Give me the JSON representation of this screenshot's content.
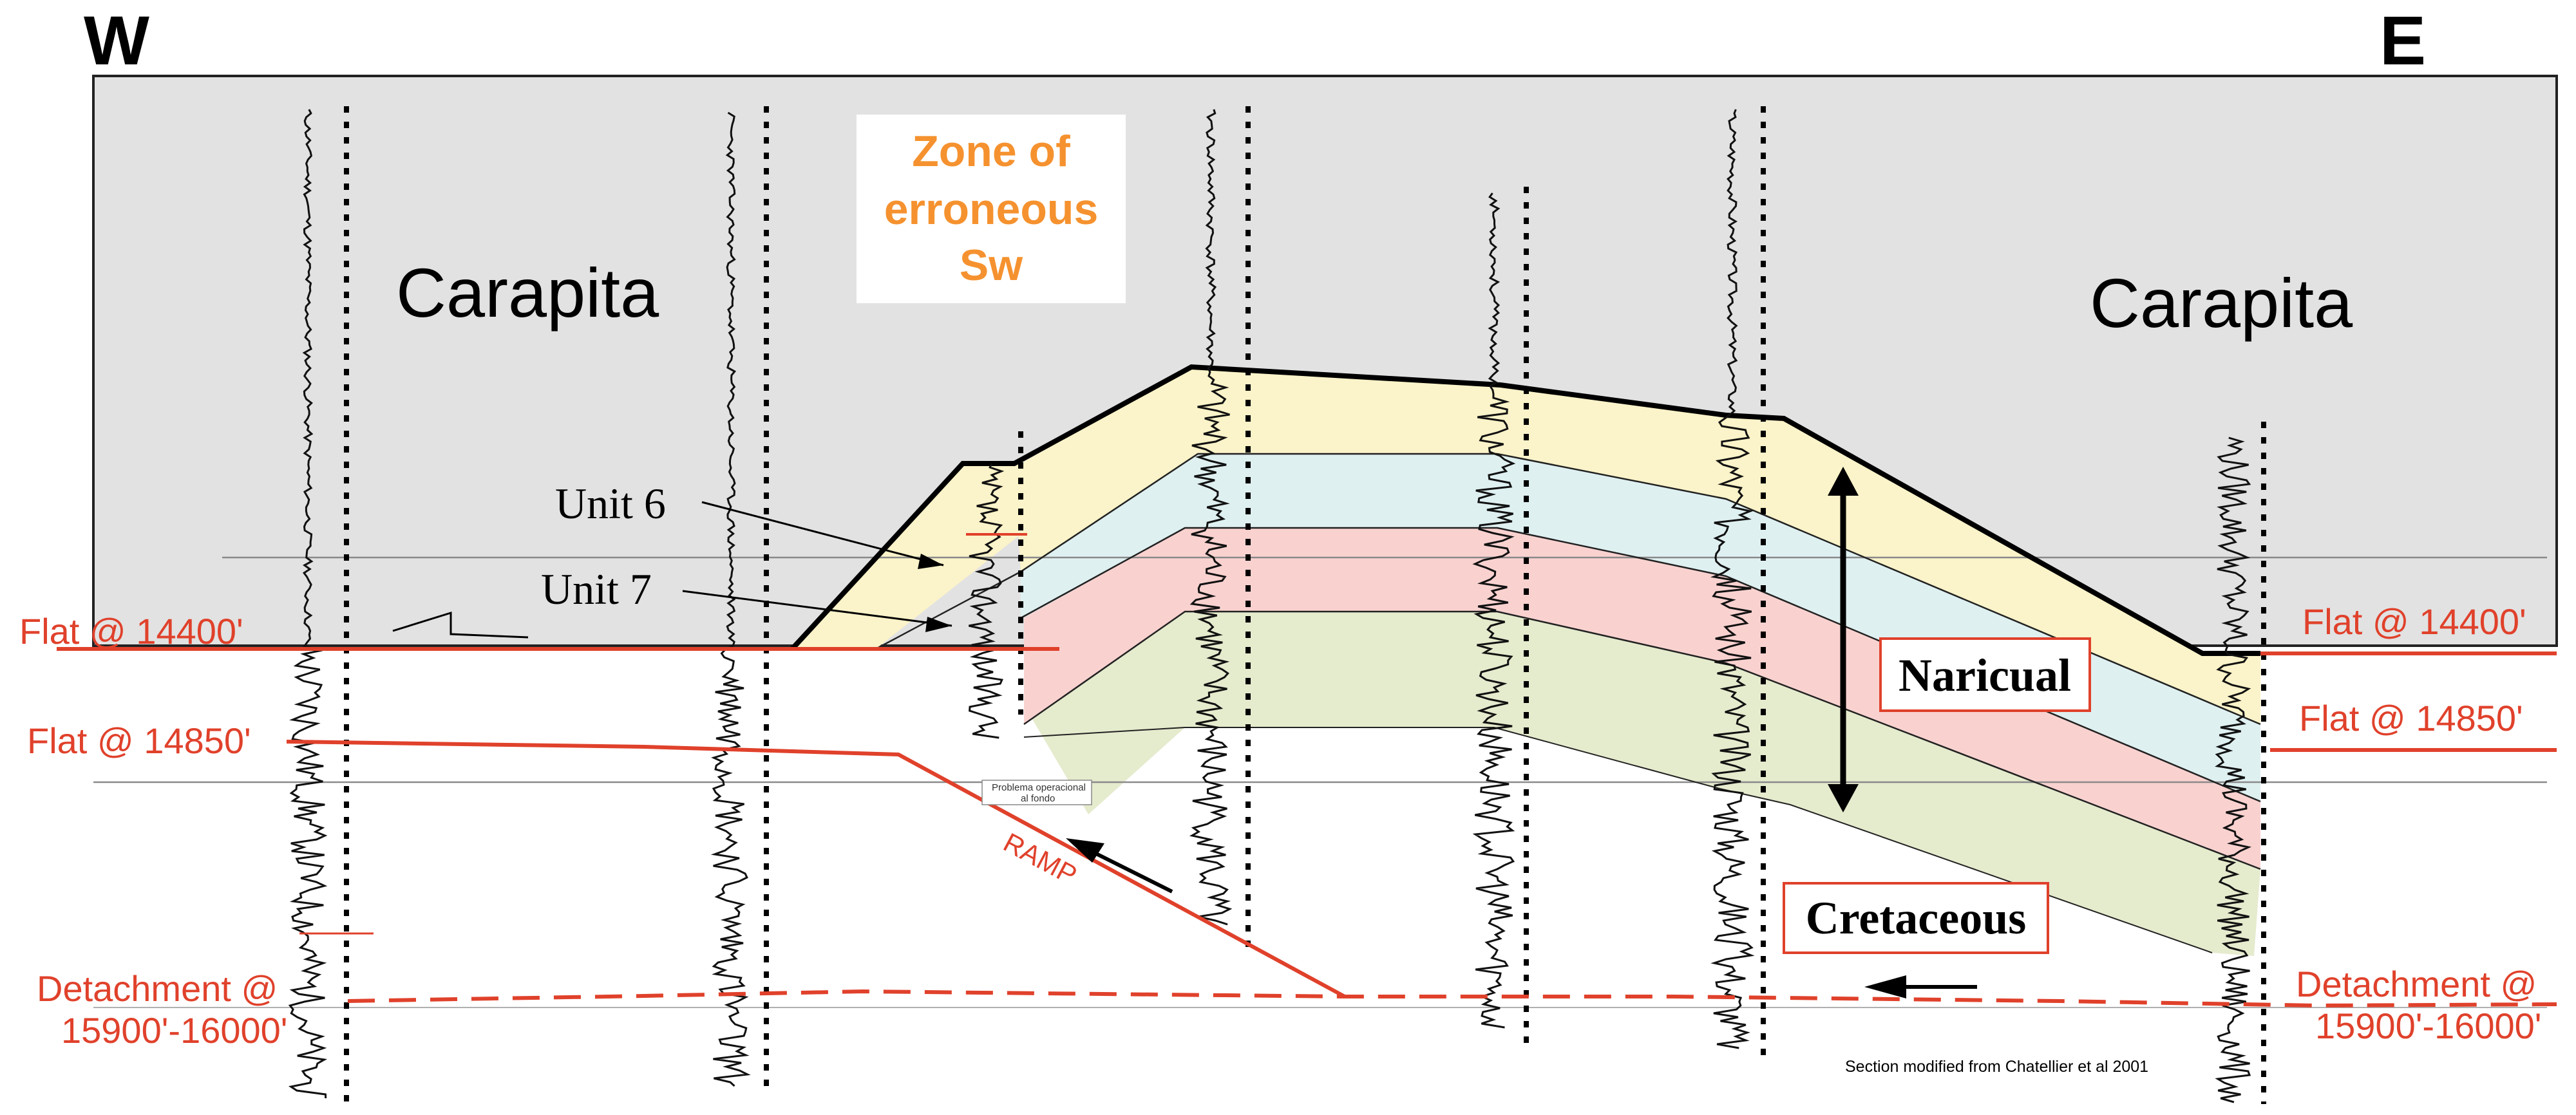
{
  "compass": {
    "west": "W",
    "east": "E"
  },
  "formations": {
    "carapita_left": "Carapita",
    "carapita_right": "Carapita"
  },
  "zone_box": {
    "line1": "Zone of",
    "line2": "erroneous",
    "line3": "Sw"
  },
  "units": {
    "unit6": "Unit 6",
    "unit7": "Unit 7"
  },
  "boxed_labels": {
    "naricual": "Naricual",
    "cretaceous": "Cretaceous"
  },
  "structural_labels": {
    "flat_14400_left": "Flat @ 14400'",
    "flat_14850_left": "Flat @ 14850'",
    "detachment_left_line1": "Detachment @",
    "detachment_left_line2": "15900'-16000'",
    "flat_14400_right": "Flat @ 14400'",
    "flat_14850_right": "Flat @ 14850'",
    "detachment_right_line1": "Detachment @",
    "detachment_right_line2": "15900'-16000'",
    "ramp": "RAMP"
  },
  "well_annotation": {
    "line1": "Problema operacional",
    "line2": "al fondo"
  },
  "credit": "Section modified from Chatellier et al 2001",
  "colors": {
    "carapita_fill": "#e2e2e2",
    "unit6_fill": "#fbf3c9",
    "unit7_fill": "#dff0f1",
    "naricual_fill": "#f9d2d0",
    "cretaceous_fill": "#e5ebcd",
    "fault_red": "#e0412b",
    "zone_text": "#f5922f",
    "label_red": "#e0412b"
  }
}
